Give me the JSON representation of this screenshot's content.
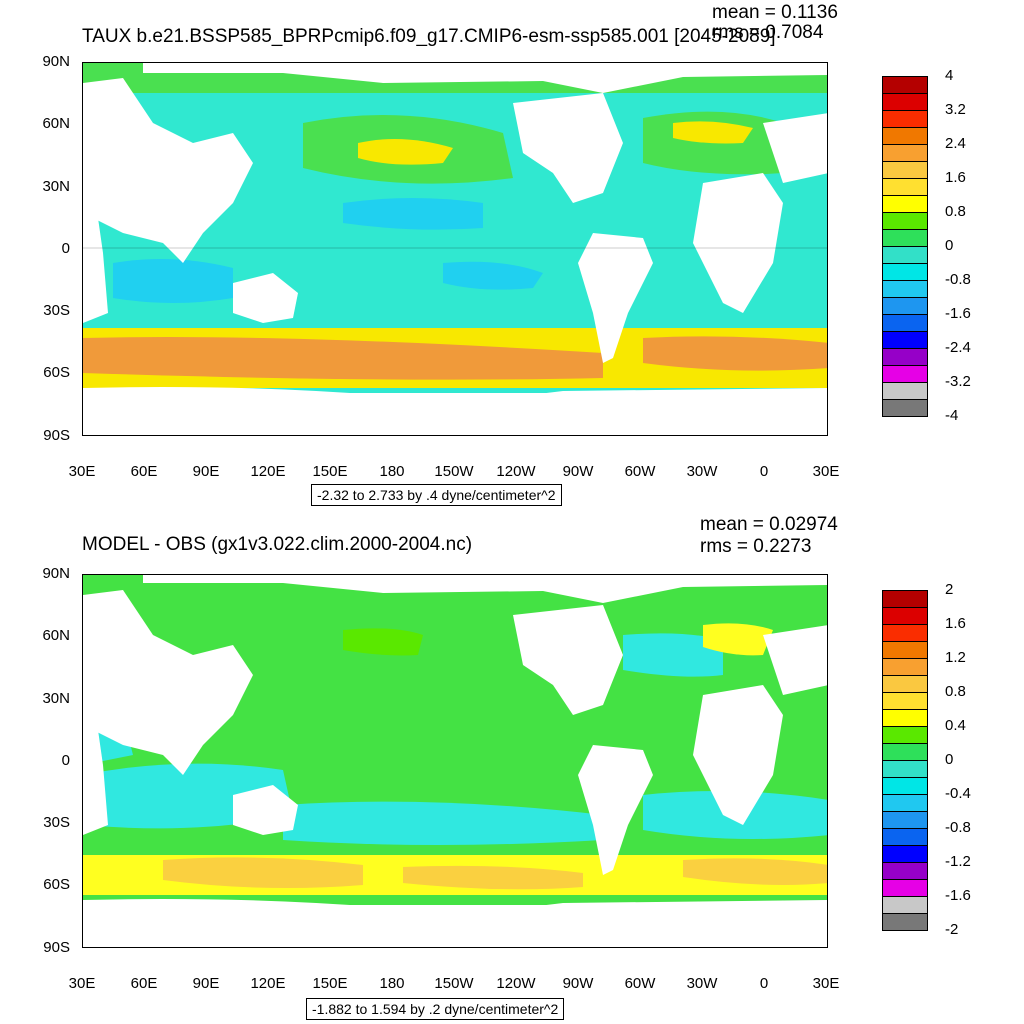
{
  "panels": [
    {
      "title": "TAUX b.e21.BSSP585_BPRPcmip6.f09_g17.CMIP6-esm-ssp585.001 [2045-2089]",
      "mean_label": "mean = 0.1136",
      "rms_label": "rms = 0.7084",
      "range_label": "-2.32 to 2.733 by .4 dyne/centimeter^2",
      "colorbar_labels": [
        "4",
        "3.2",
        "2.4",
        "1.6",
        "0.8",
        "0",
        "-0.8",
        "-1.6",
        "-2.4",
        "-3.2",
        "-4"
      ],
      "colorbar_colors": [
        "#b40000",
        "#dc0000",
        "#fa2d00",
        "#f07800",
        "#f8a030",
        "#fac840",
        "#ffe030",
        "#ffff00",
        "#5ae800",
        "#2ee05a",
        "#32e0c8",
        "#00e6e6",
        "#20c8f0",
        "#1e96f0",
        "#0a64f0",
        "#0000ff",
        "#9600c8",
        "#e600e6",
        "#c8c8c8",
        "#787878"
      ],
      "map_colors": {
        "ocean": "#30e8d0",
        "high_band": "#f09a3a",
        "mid_band": "#ffe030",
        "low": "#20d0f0",
        "pos": "#4ae050",
        "strong_pos": "#f8e800"
      }
    },
    {
      "title": "MODEL - OBS (gx1v3.022.clim.2000-2004.nc)",
      "mean_label": "mean = 0.02974",
      "rms_label": "rms = 0.2273",
      "range_label": "-1.882 to 1.594 by .2 dyne/centimeter^2",
      "colorbar_labels": [
        "2",
        "1.6",
        "1.2",
        "0.8",
        "0.4",
        "0",
        "-0.4",
        "-0.8",
        "-1.2",
        "-1.6",
        "-2"
      ],
      "colorbar_colors": [
        "#b40000",
        "#dc0000",
        "#fa2d00",
        "#f07800",
        "#f8a030",
        "#fac840",
        "#ffe030",
        "#ffff00",
        "#5ae800",
        "#2ee05a",
        "#32e0c8",
        "#00e6e6",
        "#20c8f0",
        "#1e96f0",
        "#0a64f0",
        "#0000ff",
        "#9600c8",
        "#e600e6",
        "#c8c8c8",
        "#787878"
      ],
      "map_colors": {
        "ocean": "#38e060",
        "high_band": "#fad040",
        "mid_band": "#ffff20",
        "low": "#30e8e0",
        "pos": "#44e244",
        "strong_pos": "#f8e800"
      }
    }
  ],
  "axes": {
    "y_labels": [
      "90N",
      "60N",
      "30N",
      "0",
      "30S",
      "60S",
      "90S"
    ],
    "x_labels": [
      "30E",
      "60E",
      "90E",
      "120E",
      "150E",
      "180",
      "150W",
      "120W",
      "90W",
      "60W",
      "30W",
      "0",
      "30E"
    ]
  }
}
